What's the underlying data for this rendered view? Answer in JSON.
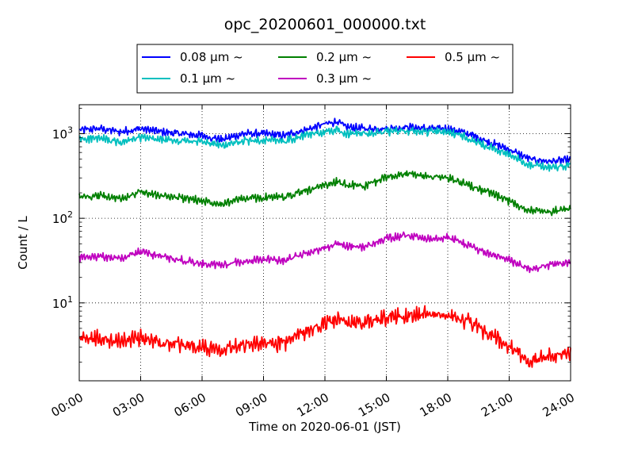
{
  "chart_data": {
    "type": "line",
    "title": "opc_20200601_000000.txt",
    "xlabel": "Time on 2020-06-01 (JST)",
    "ylabel": "Count / L",
    "yscale": "log",
    "ylim": [
      1.2,
      2200
    ],
    "xlim": [
      0,
      24
    ],
    "x_ticks": [
      {
        "value": 0,
        "label": "00:00"
      },
      {
        "value": 3,
        "label": "03:00"
      },
      {
        "value": 6,
        "label": "06:00"
      },
      {
        "value": 9,
        "label": "09:00"
      },
      {
        "value": 12,
        "label": "12:00"
      },
      {
        "value": 15,
        "label": "15:00"
      },
      {
        "value": 18,
        "label": "18:00"
      },
      {
        "value": 21,
        "label": "21:00"
      },
      {
        "value": 24,
        "label": "24:00"
      }
    ],
    "y_ticks": [
      {
        "value": 10,
        "base": "10",
        "exp": "1"
      },
      {
        "value": 100,
        "base": "10",
        "exp": "2"
      },
      {
        "value": 1000,
        "base": "10",
        "exp": "3"
      }
    ],
    "grid": true,
    "legend_position": "top-center",
    "x": [
      0,
      1,
      2,
      3,
      4,
      5,
      6,
      7,
      8,
      9,
      10,
      11,
      12,
      12.6,
      13,
      14,
      15,
      16,
      17,
      18,
      19,
      20,
      21,
      22,
      23,
      24
    ],
    "series": [
      {
        "name": "0.08 μm ~",
        "color": "#0000ff",
        "values": [
          1100,
          1150,
          1050,
          1150,
          1050,
          1000,
          950,
          850,
          1000,
          1000,
          950,
          1100,
          1300,
          1400,
          1200,
          1150,
          1150,
          1200,
          1150,
          1150,
          1000,
          800,
          650,
          500,
          470,
          490
        ]
      },
      {
        "name": "0.1 μm ~",
        "color": "#00bfbf",
        "values": [
          870,
          880,
          780,
          900,
          850,
          820,
          800,
          720,
          820,
          850,
          800,
          950,
          1050,
          1100,
          1000,
          1020,
          1050,
          1080,
          1050,
          1050,
          900,
          700,
          560,
          430,
          400,
          420
        ]
      },
      {
        "name": "0.2 μm ~",
        "color": "#008000",
        "values": [
          180,
          185,
          170,
          205,
          185,
          175,
          160,
          150,
          170,
          175,
          180,
          210,
          240,
          270,
          250,
          240,
          310,
          340,
          310,
          300,
          250,
          200,
          160,
          125,
          120,
          130
        ]
      },
      {
        "name": "0.3 μm ~",
        "color": "#bf00bf",
        "values": [
          34,
          35,
          34,
          40,
          35,
          32,
          29,
          28,
          31,
          33,
          32,
          38,
          45,
          50,
          47,
          46,
          58,
          62,
          58,
          60,
          48,
          38,
          32,
          25,
          28,
          30
        ]
      },
      {
        "name": "0.5 μm ~",
        "color": "#ff0000",
        "values": [
          3.8,
          3.8,
          3.5,
          3.9,
          3.3,
          3.2,
          3.0,
          2.9,
          3.3,
          3.3,
          3.3,
          4.5,
          5.8,
          6.3,
          5.8,
          5.8,
          6.8,
          7.2,
          7.3,
          7.2,
          6.0,
          4.3,
          3.0,
          2.0,
          2.4,
          2.6
        ]
      }
    ]
  }
}
